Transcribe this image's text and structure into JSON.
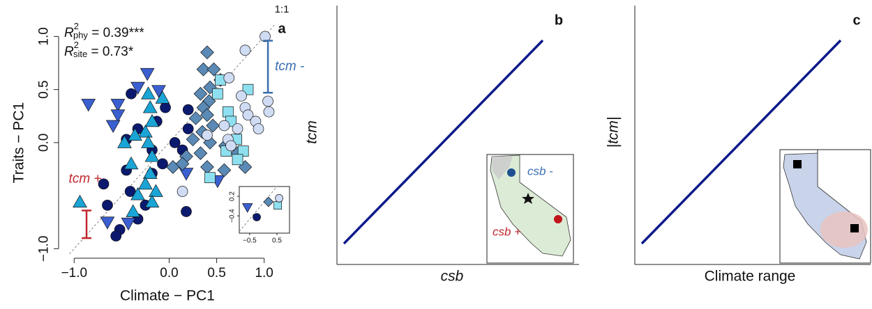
{
  "chart_data": [
    {
      "type": "scatter",
      "panel_label": "a",
      "x_label": "Climate − PC1",
      "y_label": "Traits − PC1",
      "xlim": [
        -1.12,
        1.12
      ],
      "ylim": [
        -1.05,
        1.16
      ],
      "xticks": [
        {
          "value": -1,
          "label": "−1.0"
        },
        {
          "value": 0,
          "label": "0.0"
        },
        0.5,
        {
          "value": 1,
          "label": "1.0"
        }
      ],
      "yticks": [
        {
          "value": -1,
          "label": "−1.0"
        },
        {
          "value": 0,
          "label": "0.0"
        },
        0.5,
        {
          "value": 1,
          "label": "1.0"
        }
      ],
      "identity_line": "1:1",
      "annotations": [
        {
          "symbol": "R",
          "power": "2",
          "subscript": "phy",
          "rest": " = 0.39***"
        },
        {
          "symbol": "R",
          "power": "2",
          "subscript": "site",
          "rest": " = 0.73*"
        }
      ],
      "bars": [
        {
          "x": 1.04,
          "low": 0.47,
          "high": 0.96,
          "color": "#3a6eb0",
          "label": "tcm -"
        },
        {
          "x": -0.87,
          "low": -0.9,
          "high": -0.64,
          "color": "#c0282d",
          "label": "tcm +"
        }
      ],
      "series": [
        {
          "color": "#0b1a6e",
          "marker": "circle",
          "x": [
            -0.4,
            -0.04,
            0.2,
            -0.13,
            -0.33,
            0.2,
            -0.45,
            0.06,
            -0.18,
            0.14,
            -0.45,
            -0.07,
            -0.18,
            -0.69,
            -0.41,
            -0.65,
            -0.25,
            -0.33,
            -0.52,
            0.18,
            -0.56
          ],
          "values": [
            0.46,
            0.33,
            0.31,
            0.2,
            0.13,
            0.13,
            0.03,
            0.0,
            -0.07,
            -0.07,
            -0.26,
            -0.2,
            -0.29,
            -0.39,
            -0.46,
            -0.59,
            -0.59,
            -0.72,
            -0.82,
            -0.65,
            -0.88
          ]
        },
        {
          "color": "#3a5fd0",
          "marker": "triangle-down",
          "x": [
            -0.85,
            -0.54,
            -0.23,
            -0.33,
            -0.54,
            -0.59,
            -0.11,
            -0.65,
            -0.43,
            0.18,
            0.51
          ],
          "values": [
            0.36,
            0.36,
            0.65,
            0.52,
            0.26,
            0.16,
            0.49,
            -0.75,
            -0.76,
            -0.29,
            -0.36
          ]
        },
        {
          "color": "#1aa5d6",
          "marker": "triangle-up",
          "x": [
            -0.22,
            -0.07,
            -0.2,
            -0.18,
            -0.25,
            -0.47,
            -0.22,
            -0.18,
            -0.4,
            -0.2,
            -0.25,
            -0.14,
            -0.33,
            -0.18,
            -0.38,
            -0.94,
            -0.36
          ],
          "values": [
            0.46,
            0.42,
            0.33,
            0.2,
            0.1,
            0.0,
            0.0,
            -0.13,
            -0.2,
            -0.29,
            -0.39,
            -0.46,
            -0.49,
            -0.56,
            -0.65,
            -0.56,
            0.07
          ]
        },
        {
          "color": "#5a8ab5",
          "marker": "diamond",
          "x": [
            0.4,
            0.36,
            0.47,
            0.54,
            0.43,
            0.33,
            0.42,
            0.36,
            0.28,
            0.4,
            0.46,
            0.35,
            0.25,
            0.43,
            0.59,
            0.18,
            0.04,
            0.14,
            0.33,
            0.72,
            0.58,
            0.8,
            0.4
          ],
          "values": [
            0.85,
            0.69,
            0.69,
            0.59,
            0.52,
            0.46,
            0.39,
            0.33,
            0.23,
            0.26,
            0.16,
            0.1,
            0.03,
            0.0,
            -0.03,
            -0.13,
            -0.23,
            -0.2,
            -0.1,
            -0.1,
            -0.26,
            -0.23,
            -0.23
          ]
        },
        {
          "color": "#8ee0f0",
          "marker": "square",
          "x": [
            0.54,
            0.83,
            0.51,
            0.62,
            0.65,
            0.71,
            0.6,
            0.78,
            0.72,
            0.43
          ],
          "values": [
            0.59,
            0.5,
            0.46,
            0.29,
            0.2,
            0.03,
            -0.08,
            -0.08,
            -0.16,
            -0.33
          ]
        },
        {
          "color": "#d0dcf4",
          "marker": "circle",
          "x": [
            1.01,
            0.8,
            0.63,
            0.76,
            0.8,
            1.04,
            1.05,
            0.83,
            0.91,
            0.72,
            0.94,
            0.58,
            0.62,
            0.65,
            0.14,
            0.4
          ],
          "values": [
            1.0,
            0.87,
            0.61,
            0.44,
            0.33,
            0.39,
            0.29,
            0.26,
            0.2,
            0.13,
            0.13,
            0.16,
            0.03,
            -0.03,
            -0.46,
            0.07
          ]
        }
      ],
      "inset": {
        "xlim": [
          -0.88,
          0.96
        ],
        "ylim": [
          -0.93,
          0.5
        ],
        "xticks": [
          {
            "value": -0.5,
            "label": "−0.5"
          },
          0.5
        ],
        "yticks": [
          0.2,
          {
            "value": -0.4,
            "label": "−0.4"
          }
        ],
        "series": [
          {
            "color": "#3a5fd0",
            "marker": "triangle-down",
            "x": [
              -0.58
            ],
            "values": [
              -0.14
            ]
          },
          {
            "color": "#0b1a6e",
            "marker": "circle",
            "x": [
              -0.24
            ],
            "values": [
              -0.44
            ]
          },
          {
            "color": "#5a8ab5",
            "marker": "diamond",
            "x": [
              0.19
            ],
            "values": [
              0.03
            ]
          },
          {
            "color": "#8ee0f0",
            "marker": "square",
            "x": [
              0.53
            ],
            "values": [
              -0.08
            ]
          },
          {
            "color": "#d0dcf4",
            "marker": "circle",
            "x": [
              0.58
            ],
            "values": [
              0.14
            ]
          }
        ]
      }
    },
    {
      "type": "schematic",
      "panel_label": "b",
      "x_label": "csb",
      "y_label": "tcm",
      "line_color": "#0d1a8a",
      "map_labels": [
        "csb -",
        "csb +"
      ]
    },
    {
      "type": "schematic",
      "panel_label": "c",
      "x_label": "Climate range",
      "y_label": "|tcm|",
      "line_color": "#0d1a8a"
    }
  ]
}
